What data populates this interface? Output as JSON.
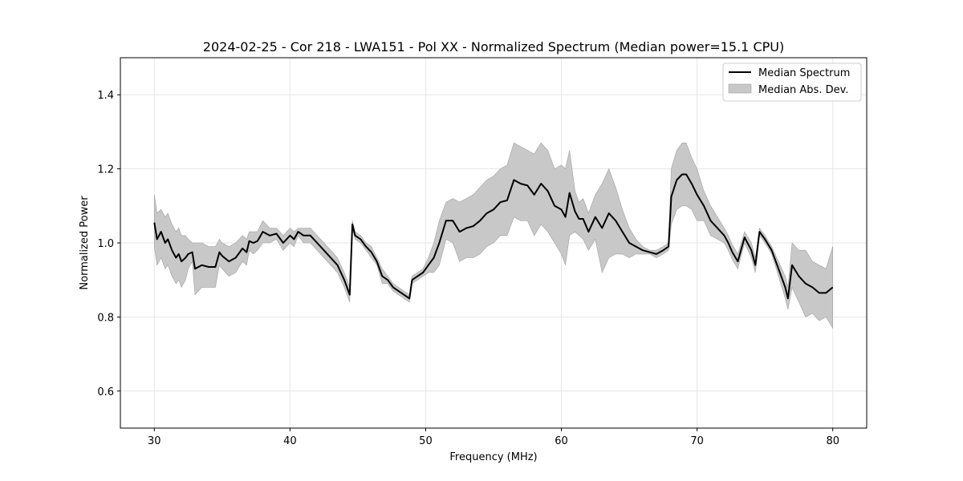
{
  "chart_data": {
    "type": "line",
    "title": "2024-02-25 - Cor 218 - LWA151 - Pol XX - Normalized Spectrum (Median power=15.1 CPU)",
    "xlabel": "Frequency (MHz)",
    "ylabel": "Normalized Power",
    "xlim": [
      27.5,
      82.5
    ],
    "ylim": [
      0.5,
      1.5
    ],
    "xticks": [
      30,
      40,
      50,
      60,
      70,
      80
    ],
    "yticks": [
      0.6,
      0.8,
      1.0,
      1.2,
      1.4
    ],
    "x_tick_labels": [
      "30",
      "40",
      "50",
      "60",
      "70",
      "80"
    ],
    "y_tick_labels": [
      "0.6",
      "0.8",
      "1.0",
      "1.2",
      "1.4"
    ],
    "grid": true,
    "legend_position": "top-right",
    "legend": {
      "median_label": "Median Spectrum",
      "mad_label": "Median Abs. Dev."
    },
    "colors": {
      "line": "#000000",
      "band": "#c8c8c8",
      "band_edge": "#a0a0a0",
      "grid": "#e6e6e6"
    },
    "series": [
      {
        "name": "Median Spectrum",
        "x": [
          30.0,
          30.2,
          30.5,
          30.8,
          31.0,
          31.3,
          31.6,
          31.8,
          32.0,
          32.3,
          32.5,
          32.8,
          33.0,
          33.5,
          34.0,
          34.5,
          34.8,
          35.0,
          35.5,
          36.0,
          36.5,
          36.8,
          37.0,
          37.3,
          37.6,
          38.0,
          38.5,
          39.0,
          39.5,
          40.0,
          40.3,
          40.6,
          41.0,
          41.5,
          42.0,
          42.5,
          43.0,
          43.5,
          44.0,
          44.4,
          44.6,
          44.8,
          45.2,
          45.6,
          46.0,
          46.4,
          46.8,
          47.2,
          47.6,
          48.0,
          48.4,
          48.8,
          49.0,
          49.4,
          49.8,
          50.2,
          50.6,
          51.0,
          51.5,
          52.0,
          52.5,
          53.0,
          53.5,
          54.0,
          54.5,
          55.0,
          55.5,
          56.0,
          56.5,
          57.0,
          57.5,
          58.0,
          58.5,
          59.0,
          59.5,
          60.0,
          60.3,
          60.6,
          61.0,
          61.3,
          61.6,
          62.0,
          62.5,
          63.0,
          63.5,
          64.0,
          64.5,
          65.0,
          65.5,
          66.0,
          66.5,
          67.0,
          67.5,
          67.9,
          68.1,
          68.5,
          68.9,
          69.2,
          69.6,
          70.0,
          70.5,
          71.0,
          71.5,
          72.0,
          72.3,
          72.6,
          73.0,
          73.5,
          74.0,
          74.3,
          74.6,
          75.0,
          75.5,
          76.0,
          76.5,
          76.7,
          77.0,
          77.5,
          78.0,
          78.5,
          79.0,
          79.5,
          80.0
        ],
        "values": [
          1.055,
          1.01,
          1.03,
          1.0,
          1.01,
          0.98,
          0.96,
          0.97,
          0.95,
          0.96,
          0.97,
          0.975,
          0.93,
          0.94,
          0.935,
          0.935,
          0.975,
          0.965,
          0.95,
          0.96,
          0.985,
          0.975,
          1.005,
          1.0,
          1.005,
          1.03,
          1.02,
          1.025,
          1.0,
          1.02,
          1.01,
          1.03,
          1.02,
          1.02,
          1.0,
          0.98,
          0.96,
          0.94,
          0.9,
          0.86,
          1.05,
          1.02,
          1.01,
          0.99,
          0.975,
          0.95,
          0.91,
          0.9,
          0.88,
          0.87,
          0.86,
          0.85,
          0.9,
          0.91,
          0.92,
          0.94,
          0.96,
          1.0,
          1.06,
          1.06,
          1.03,
          1.04,
          1.045,
          1.06,
          1.08,
          1.09,
          1.11,
          1.115,
          1.17,
          1.16,
          1.155,
          1.13,
          1.16,
          1.14,
          1.1,
          1.09,
          1.07,
          1.135,
          1.085,
          1.065,
          1.065,
          1.03,
          1.07,
          1.04,
          1.08,
          1.06,
          1.03,
          1.0,
          0.99,
          0.98,
          0.975,
          0.97,
          0.98,
          0.99,
          1.125,
          1.17,
          1.185,
          1.185,
          1.16,
          1.13,
          1.1,
          1.06,
          1.04,
          1.02,
          1.0,
          0.975,
          0.95,
          1.015,
          0.98,
          0.94,
          1.03,
          1.01,
          0.98,
          0.93,
          0.88,
          0.85,
          0.94,
          0.91,
          0.89,
          0.88,
          0.865,
          0.865,
          0.88
        ]
      },
      {
        "name": "Median Abs. Dev.",
        "x": [
          30.0,
          30.2,
          30.5,
          30.8,
          31.0,
          31.3,
          31.6,
          31.8,
          32.0,
          32.3,
          32.5,
          32.8,
          33.0,
          33.5,
          34.0,
          34.5,
          34.8,
          35.0,
          35.5,
          36.0,
          36.5,
          36.8,
          37.0,
          37.3,
          37.6,
          38.0,
          38.5,
          39.0,
          39.5,
          40.0,
          40.3,
          40.6,
          41.0,
          41.5,
          42.0,
          42.5,
          43.0,
          43.5,
          44.0,
          44.4,
          44.6,
          44.8,
          45.2,
          45.6,
          46.0,
          46.4,
          46.8,
          47.2,
          47.6,
          48.0,
          48.4,
          48.8,
          49.0,
          49.4,
          49.8,
          50.2,
          50.6,
          51.0,
          51.5,
          52.0,
          52.5,
          53.0,
          53.5,
          54.0,
          54.5,
          55.0,
          55.5,
          56.0,
          56.5,
          57.0,
          57.5,
          58.0,
          58.5,
          59.0,
          59.5,
          60.0,
          60.3,
          60.6,
          61.0,
          61.3,
          61.6,
          62.0,
          62.5,
          63.0,
          63.5,
          64.0,
          64.5,
          65.0,
          65.5,
          66.0,
          66.5,
          67.0,
          67.5,
          67.9,
          68.1,
          68.5,
          68.9,
          69.2,
          69.6,
          70.0,
          70.5,
          71.0,
          71.5,
          72.0,
          72.3,
          72.6,
          73.0,
          73.5,
          74.0,
          74.3,
          74.6,
          75.0,
          75.5,
          76.0,
          76.5,
          76.7,
          77.0,
          77.5,
          78.0,
          78.5,
          79.0,
          79.5,
          80.0
        ],
        "upper": [
          1.13,
          1.08,
          1.09,
          1.07,
          1.08,
          1.05,
          1.03,
          1.04,
          1.02,
          1.02,
          1.01,
          1.0,
          1.0,
          1.0,
          0.99,
          0.99,
          1.01,
          1.0,
          0.99,
          1.0,
          1.02,
          1.01,
          1.03,
          1.03,
          1.03,
          1.06,
          1.04,
          1.04,
          1.02,
          1.04,
          1.03,
          1.04,
          1.04,
          1.04,
          1.02,
          1.0,
          0.98,
          0.96,
          0.92,
          0.88,
          1.06,
          1.03,
          1.02,
          1.0,
          0.99,
          0.96,
          0.93,
          0.91,
          0.89,
          0.88,
          0.87,
          0.86,
          0.91,
          0.92,
          0.93,
          0.96,
          1.0,
          1.06,
          1.11,
          1.12,
          1.11,
          1.12,
          1.13,
          1.15,
          1.17,
          1.18,
          1.2,
          1.21,
          1.27,
          1.26,
          1.25,
          1.24,
          1.27,
          1.25,
          1.2,
          1.21,
          1.2,
          1.25,
          1.14,
          1.11,
          1.12,
          1.08,
          1.13,
          1.16,
          1.2,
          1.15,
          1.09,
          1.04,
          1.01,
          0.99,
          0.98,
          0.98,
          0.99,
          1.0,
          1.2,
          1.25,
          1.27,
          1.27,
          1.23,
          1.2,
          1.14,
          1.1,
          1.07,
          1.04,
          1.02,
          0.995,
          0.97,
          1.03,
          1.0,
          0.96,
          1.04,
          1.02,
          0.99,
          0.95,
          0.91,
          0.88,
          1.0,
          0.98,
          0.98,
          0.95,
          0.94,
          0.93,
          0.99
        ],
        "lower": [
          0.99,
          0.94,
          0.96,
          0.93,
          0.94,
          0.91,
          0.89,
          0.9,
          0.88,
          0.9,
          0.93,
          0.95,
          0.86,
          0.88,
          0.88,
          0.88,
          0.94,
          0.93,
          0.91,
          0.92,
          0.95,
          0.94,
          0.98,
          0.97,
          0.98,
          1.0,
          1.0,
          1.01,
          0.98,
          1.0,
          0.99,
          1.02,
          1.0,
          1.0,
          0.98,
          0.96,
          0.94,
          0.92,
          0.88,
          0.84,
          1.04,
          1.01,
          1.0,
          0.98,
          0.96,
          0.94,
          0.89,
          0.89,
          0.87,
          0.86,
          0.85,
          0.84,
          0.89,
          0.9,
          0.91,
          0.92,
          0.92,
          0.94,
          1.01,
          1.0,
          0.95,
          0.96,
          0.96,
          0.97,
          0.99,
          1.0,
          1.02,
          1.02,
          1.07,
          1.06,
          1.06,
          1.02,
          1.05,
          1.03,
          1.0,
          0.97,
          0.94,
          1.02,
          1.03,
          1.02,
          1.01,
          0.98,
          1.01,
          0.92,
          0.96,
          0.97,
          0.97,
          0.96,
          0.97,
          0.97,
          0.97,
          0.96,
          0.97,
          0.98,
          1.05,
          1.09,
          1.1,
          1.1,
          1.09,
          1.06,
          1.06,
          1.02,
          1.01,
          1.0,
          0.98,
          0.955,
          0.93,
          1.0,
          0.96,
          0.92,
          1.02,
          1.0,
          0.97,
          0.91,
          0.85,
          0.82,
          0.88,
          0.84,
          0.8,
          0.81,
          0.79,
          0.8,
          0.77
        ]
      }
    ]
  }
}
